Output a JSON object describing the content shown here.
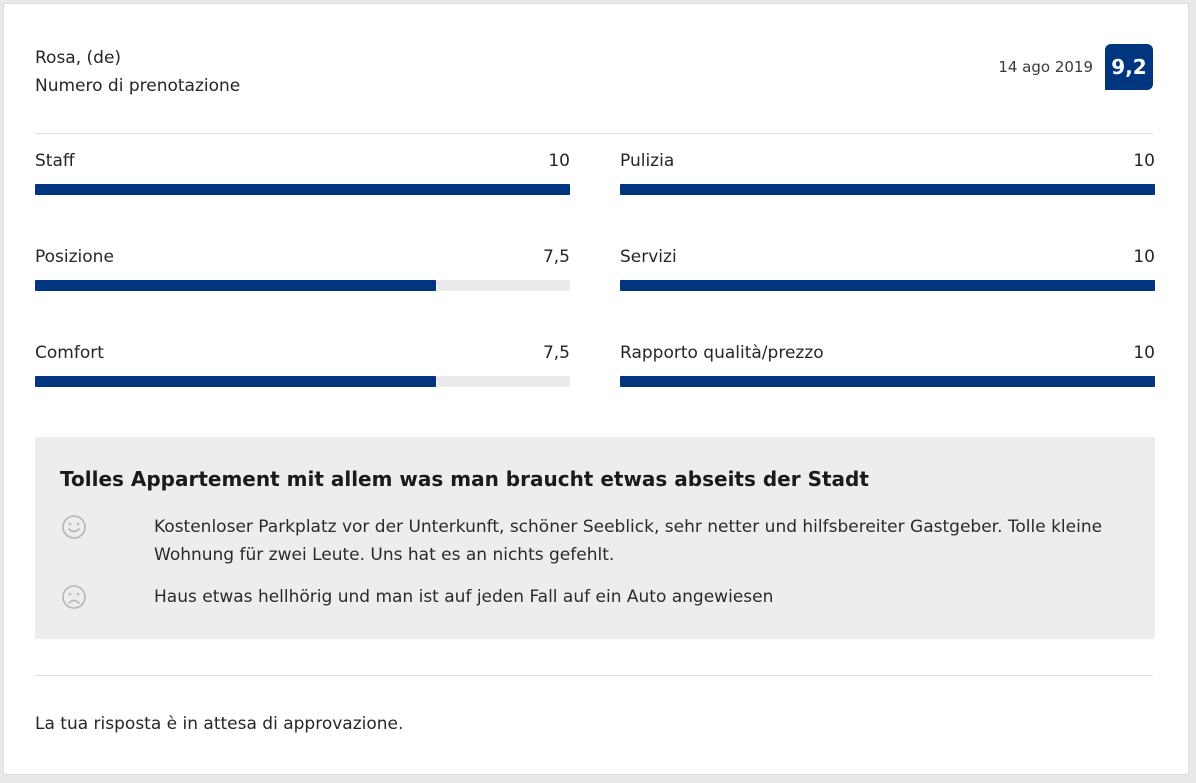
{
  "reviewer": {
    "name": "Rosa, (de)",
    "booking_label": "Numero di prenotazione"
  },
  "review": {
    "date": "14 ago 2019",
    "score": "9,2",
    "title": "Tolles Appartement mit allem was man braucht etwas abseits der Stadt",
    "positive": "Kostenloser Parkplatz vor der Unterkunft, schöner Seeblick, sehr netter und hilfsbereiter Gastgeber. Tolle kleine Wohnung für zwei Leute. Uns hat es an nichts gefehlt.",
    "negative": "Haus etwas hellhörig und man ist auf jeden Fall auf ein Auto angewiesen",
    "positive_icon": "smile-icon",
    "negative_icon": "frown-icon"
  },
  "categories": [
    {
      "label": "Staff",
      "value": "10",
      "fraction": 1.0
    },
    {
      "label": "Pulizia",
      "value": "10",
      "fraction": 1.0
    },
    {
      "label": "Posizione",
      "value": "7,5",
      "fraction": 0.75
    },
    {
      "label": "Servizi",
      "value": "10",
      "fraction": 1.0
    },
    {
      "label": "Comfort",
      "value": "7,5",
      "fraction": 0.75
    },
    {
      "label": "Rapporto qualità/prezzo",
      "value": "10",
      "fraction": 1.0
    }
  ],
  "response_status": "La tua risposta è in attesa di approvazione.",
  "colors": {
    "accent": "#003580",
    "bar_track": "#ebebeb",
    "review_bg": "#ededed"
  }
}
